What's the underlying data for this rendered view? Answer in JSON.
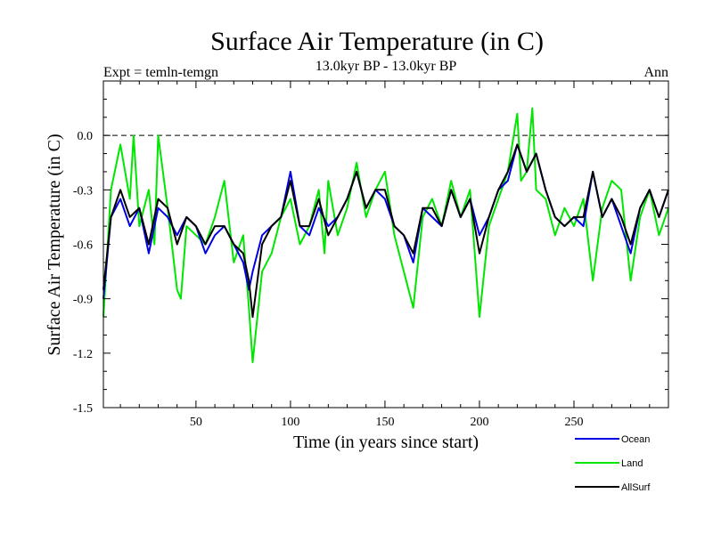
{
  "chart_data": {
    "type": "line",
    "title": "Surface Air Temperature (in C)",
    "subtitle": "13.0kyr BP - 13.0kyr BP",
    "left_label": "Expt = temln-temgn",
    "right_label": "Ann",
    "xlabel": "Time (in years since start)",
    "ylabel": "Surface Air Temperature (in C)",
    "xlim": [
      1,
      300
    ],
    "ylim": [
      -1.5,
      0.3
    ],
    "xticks": [
      50,
      100,
      150,
      200,
      250
    ],
    "xtick_labels": [
      "50",
      "100",
      "150",
      "200",
      "250"
    ],
    "yticks": [
      0.0,
      -0.3,
      -0.6,
      -0.9,
      -1.2,
      -1.5
    ],
    "ytick_labels": [
      "0.0",
      "-0.3",
      "-0.6",
      "-0.9",
      "-1.2",
      "-1.5"
    ],
    "zero_line": 0.0,
    "legend_position": "bottom-right",
    "series": [
      {
        "name": "Land",
        "color": "#00e600",
        "x": [
          1,
          5,
          10,
          15,
          17,
          20,
          25,
          28,
          30,
          35,
          40,
          42,
          45,
          50,
          55,
          60,
          65,
          70,
          75,
          78,
          80,
          85,
          90,
          95,
          100,
          105,
          110,
          115,
          118,
          120,
          125,
          130,
          135,
          140,
          145,
          150,
          155,
          160,
          165,
          170,
          175,
          180,
          185,
          190,
          195,
          200,
          205,
          210,
          215,
          220,
          222,
          225,
          228,
          230,
          235,
          240,
          245,
          250,
          255,
          260,
          265,
          270,
          275,
          280,
          285,
          290,
          295,
          300
        ],
        "values": [
          -1.0,
          -0.3,
          -0.05,
          -0.35,
          0.0,
          -0.5,
          -0.3,
          -0.6,
          0.0,
          -0.4,
          -0.85,
          -0.9,
          -0.5,
          -0.55,
          -0.6,
          -0.45,
          -0.25,
          -0.7,
          -0.55,
          -0.95,
          -1.25,
          -0.75,
          -0.65,
          -0.45,
          -0.35,
          -0.6,
          -0.5,
          -0.3,
          -0.65,
          -0.25,
          -0.55,
          -0.4,
          -0.15,
          -0.45,
          -0.3,
          -0.2,
          -0.55,
          -0.75,
          -0.95,
          -0.45,
          -0.35,
          -0.5,
          -0.25,
          -0.45,
          -0.3,
          -1.0,
          -0.5,
          -0.35,
          -0.2,
          0.12,
          -0.25,
          -0.2,
          0.15,
          -0.3,
          -0.35,
          -0.55,
          -0.4,
          -0.5,
          -0.35,
          -0.8,
          -0.4,
          -0.25,
          -0.3,
          -0.8,
          -0.45,
          -0.3,
          -0.55,
          -0.4
        ]
      },
      {
        "name": "Ocean",
        "color": "#0000e6",
        "x": [
          1,
          5,
          10,
          15,
          20,
          25,
          30,
          35,
          40,
          45,
          50,
          55,
          60,
          65,
          70,
          75,
          78,
          80,
          85,
          90,
          95,
          100,
          105,
          110,
          115,
          120,
          125,
          130,
          135,
          140,
          145,
          150,
          155,
          160,
          165,
          170,
          175,
          180,
          185,
          190,
          195,
          200,
          205,
          210,
          215,
          220,
          225,
          230,
          235,
          240,
          245,
          250,
          255,
          260,
          265,
          270,
          275,
          280,
          285,
          290,
          295,
          300
        ],
        "values": [
          -0.9,
          -0.45,
          -0.35,
          -0.5,
          -0.4,
          -0.65,
          -0.4,
          -0.45,
          -0.55,
          -0.45,
          -0.5,
          -0.65,
          -0.55,
          -0.5,
          -0.6,
          -0.7,
          -0.85,
          -0.75,
          -0.55,
          -0.5,
          -0.45,
          -0.2,
          -0.5,
          -0.55,
          -0.4,
          -0.5,
          -0.45,
          -0.35,
          -0.2,
          -0.4,
          -0.3,
          -0.35,
          -0.5,
          -0.55,
          -0.7,
          -0.4,
          -0.45,
          -0.5,
          -0.3,
          -0.45,
          -0.35,
          -0.55,
          -0.45,
          -0.3,
          -0.25,
          -0.05,
          -0.2,
          -0.1,
          -0.3,
          -0.45,
          -0.5,
          -0.45,
          -0.5,
          -0.2,
          -0.45,
          -0.35,
          -0.5,
          -0.65,
          -0.4,
          -0.3,
          -0.45,
          -0.3
        ]
      },
      {
        "name": "AllSurf",
        "color": "#000000",
        "x": [
          1,
          5,
          10,
          15,
          20,
          25,
          30,
          35,
          40,
          45,
          50,
          55,
          60,
          65,
          70,
          75,
          78,
          80,
          85,
          90,
          95,
          100,
          105,
          110,
          115,
          120,
          125,
          130,
          135,
          140,
          145,
          150,
          155,
          160,
          165,
          170,
          175,
          180,
          185,
          190,
          195,
          200,
          205,
          210,
          215,
          220,
          225,
          230,
          235,
          240,
          245,
          250,
          255,
          260,
          265,
          270,
          275,
          280,
          285,
          290,
          295,
          300
        ],
        "values": [
          -0.85,
          -0.45,
          -0.3,
          -0.45,
          -0.4,
          -0.6,
          -0.35,
          -0.4,
          -0.6,
          -0.45,
          -0.5,
          -0.6,
          -0.5,
          -0.5,
          -0.6,
          -0.65,
          -0.8,
          -1.0,
          -0.6,
          -0.5,
          -0.45,
          -0.25,
          -0.5,
          -0.5,
          -0.35,
          -0.55,
          -0.45,
          -0.35,
          -0.2,
          -0.4,
          -0.3,
          -0.3,
          -0.5,
          -0.55,
          -0.65,
          -0.4,
          -0.4,
          -0.5,
          -0.3,
          -0.45,
          -0.35,
          -0.65,
          -0.45,
          -0.3,
          -0.2,
          -0.05,
          -0.2,
          -0.1,
          -0.3,
          -0.45,
          -0.5,
          -0.45,
          -0.45,
          -0.2,
          -0.45,
          -0.35,
          -0.45,
          -0.6,
          -0.4,
          -0.3,
          -0.45,
          -0.3
        ]
      }
    ],
    "legend_order": [
      "Ocean",
      "Land",
      "AllSurf"
    ]
  }
}
